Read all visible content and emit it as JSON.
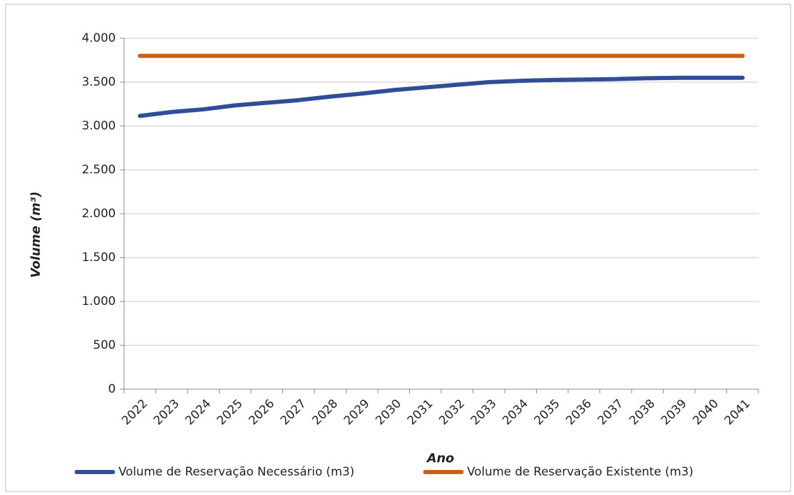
{
  "chart_data": {
    "type": "line",
    "y_label": "Volume (m³)",
    "x_label": "Ano",
    "categories": [
      "2022",
      "2023",
      "2024",
      "2025",
      "2026",
      "2027",
      "2028",
      "2029",
      "2030",
      "2031",
      "2032",
      "2033",
      "2034",
      "2035",
      "2036",
      "2037",
      "2038",
      "2039",
      "2040",
      "2041"
    ],
    "series": [
      {
        "name": "Volume de Reservação Necessário (m3)",
        "color": "#2e4f96",
        "values": [
          3115,
          3160,
          3190,
          3235,
          3265,
          3295,
          3335,
          3370,
          3410,
          3440,
          3470,
          3500,
          3515,
          3525,
          3530,
          3535,
          3545,
          3550,
          3550,
          3550
        ]
      },
      {
        "name": "Volume de Reservação Existente (m3)",
        "color": "#cc5f16",
        "values": [
          3800,
          3800,
          3800,
          3800,
          3800,
          3800,
          3800,
          3800,
          3800,
          3800,
          3800,
          3800,
          3800,
          3800,
          3800,
          3800,
          3800,
          3800,
          3800,
          3800
        ]
      }
    ],
    "ylim": [
      0,
      4000
    ],
    "yticks": [
      0,
      500,
      {
        "value": 1000,
        "label": "1.000"
      },
      {
        "value": 1500,
        "label": "1.500"
      },
      {
        "value": 2000,
        "label": "2.000"
      },
      {
        "value": 2500,
        "label": "2.500"
      },
      {
        "value": 3000,
        "label": "3.000"
      },
      {
        "value": 3500,
        "label": "3.500"
      },
      {
        "value": 4000,
        "label": "4.000"
      }
    ],
    "grid": true,
    "legend": "bottom"
  }
}
